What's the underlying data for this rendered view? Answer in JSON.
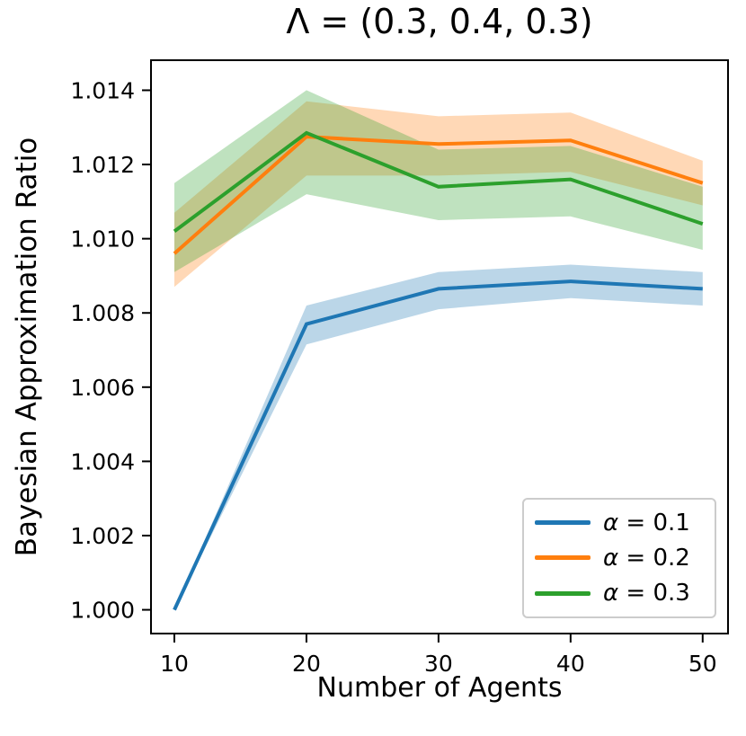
{
  "chart_data": {
    "type": "line",
    "title": "Λ = (0.3, 0.4, 0.3)",
    "xlabel": "Number of Agents",
    "ylabel": "Bayesian Approximation Ratio",
    "x": [
      10,
      20,
      30,
      40,
      50
    ],
    "xticks": [
      10,
      20,
      30,
      40,
      50
    ],
    "xtick_labels": [
      "10",
      "20",
      "30",
      "40",
      "50"
    ],
    "yticks": [
      1.0,
      1.002,
      1.004,
      1.006,
      1.008,
      1.01,
      1.012,
      1.014
    ],
    "ytick_labels": [
      "1.000",
      "1.002",
      "1.004",
      "1.006",
      "1.008",
      "1.010",
      "1.012",
      "1.014"
    ],
    "xlim": [
      8.23,
      51.92
    ],
    "ylim": [
      0.99936,
      1.01481
    ],
    "grid": false,
    "legend_position": "lower right",
    "band_opacity": 0.3,
    "series": [
      {
        "name": "α = 0.1",
        "color": "#1f77b4",
        "mean": [
          1.0,
          1.0077,
          1.00865,
          1.00885,
          1.00865
        ],
        "lower": [
          1.0,
          1.00715,
          1.0081,
          1.0084,
          1.0082
        ],
        "upper": [
          1.0,
          1.0082,
          1.0091,
          1.0093,
          1.0091
        ]
      },
      {
        "name": "α = 0.2",
        "color": "#ff7f0e",
        "mean": [
          1.0096,
          1.01275,
          1.01255,
          1.01265,
          1.0115
        ],
        "lower": [
          1.0087,
          1.0117,
          1.0117,
          1.0118,
          1.0109
        ],
        "upper": [
          1.0107,
          1.0137,
          1.0133,
          1.0134,
          1.0121
        ]
      },
      {
        "name": "α = 0.3",
        "color": "#2ca02c",
        "mean": [
          1.0102,
          1.01285,
          1.0114,
          1.0116,
          1.0104
        ],
        "lower": [
          1.0091,
          1.0112,
          1.0105,
          1.0106,
          1.0097
        ],
        "upper": [
          1.0115,
          1.014,
          1.0124,
          1.0125,
          1.0114
        ]
      }
    ]
  }
}
